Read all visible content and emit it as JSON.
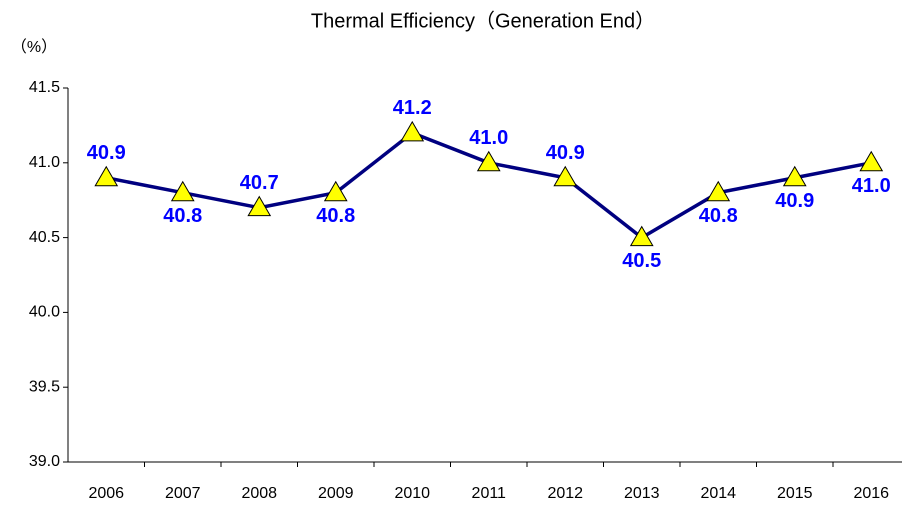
{
  "chart_data": {
    "type": "line",
    "title": "Thermal Efficiency（Generation End）",
    "y_unit": "（%）",
    "categories": [
      "2006",
      "2007",
      "2008",
      "2009",
      "2010",
      "2011",
      "2012",
      "2013",
      "2014",
      "2015",
      "2016"
    ],
    "series": [
      {
        "name": "Thermal Efficiency",
        "color": "#000080",
        "marker_color": "#ffff00",
        "label_color": "#0000ff",
        "values": [
          40.9,
          40.8,
          40.7,
          40.8,
          41.2,
          41.0,
          40.9,
          40.5,
          40.8,
          40.9,
          41.0
        ],
        "value_labels": [
          "40.9",
          "40.8",
          "40.7",
          "40.8",
          "41.2",
          "41.0",
          "40.9",
          "40.5",
          "40.8",
          "40.9",
          "41.0"
        ]
      }
    ],
    "ylim": [
      39.0,
      41.5
    ],
    "yticks": [
      {
        "value": 39.0,
        "label": "39.0"
      },
      39.5,
      {
        "value": 40.0,
        "label": "40.0"
      },
      40.5,
      {
        "value": 41.0,
        "label": "41.0"
      },
      41.5
    ],
    "grid": false
  }
}
